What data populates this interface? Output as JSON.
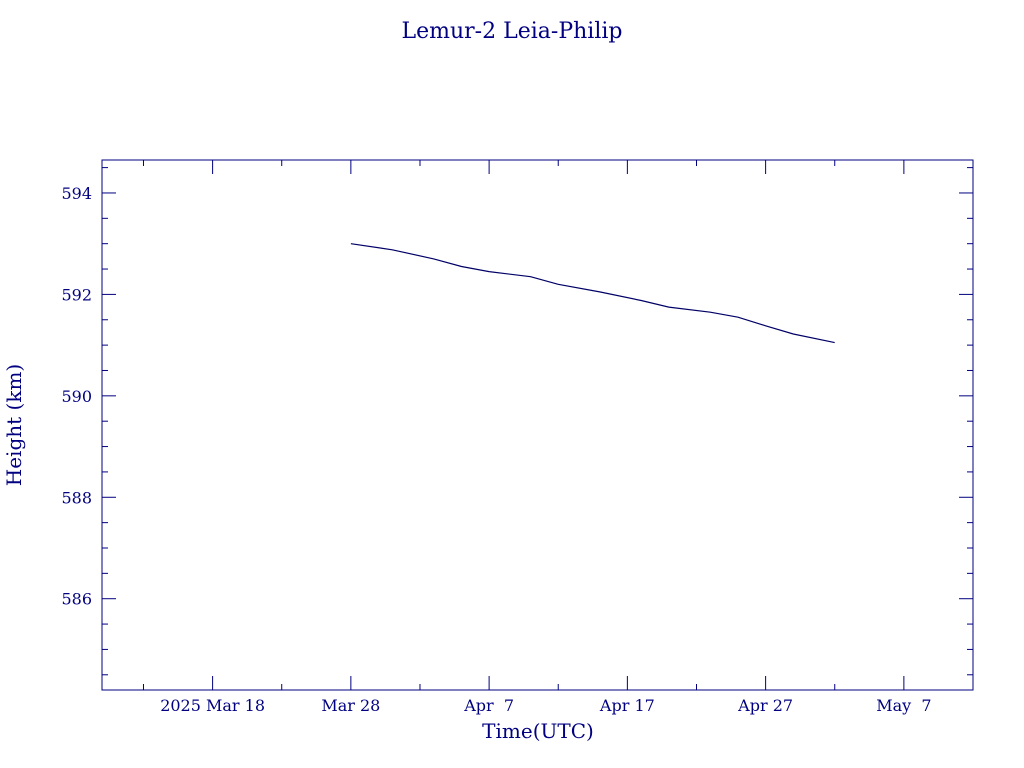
{
  "chart_data": {
    "type": "line",
    "title": "Lemur-2 Leia-Philip",
    "xlabel": "Time(UTC)",
    "ylabel": "Height (km)",
    "x_ticks": [
      "2025 Mar 18",
      "Mar 28",
      "Apr  7",
      "Apr 17",
      "Apr 27",
      "May  7"
    ],
    "y_ticks": [
      "594",
      "592",
      "590",
      "588",
      "586"
    ],
    "xlim": [
      "2025-03-10",
      "2025-05-12"
    ],
    "ylim": [
      584.2,
      594.65
    ],
    "grid": false,
    "colors": {
      "line": "#000066",
      "text": "#000080",
      "axis": "#000080"
    },
    "series": [
      {
        "x": [
          "2025-03-28",
          "2025-03-31",
          "2025-04-03",
          "2025-04-05",
          "2025-04-07",
          "2025-04-10",
          "2025-04-12",
          "2025-04-15",
          "2025-04-18",
          "2025-04-20",
          "2025-04-23",
          "2025-04-25",
          "2025-04-27",
          "2025-04-29",
          "2025-05-02"
        ],
        "y": [
          593.0,
          592.88,
          592.7,
          592.55,
          592.45,
          592.35,
          592.2,
          592.05,
          591.88,
          591.75,
          591.65,
          591.55,
          591.38,
          591.22,
          591.05
        ]
      }
    ]
  }
}
